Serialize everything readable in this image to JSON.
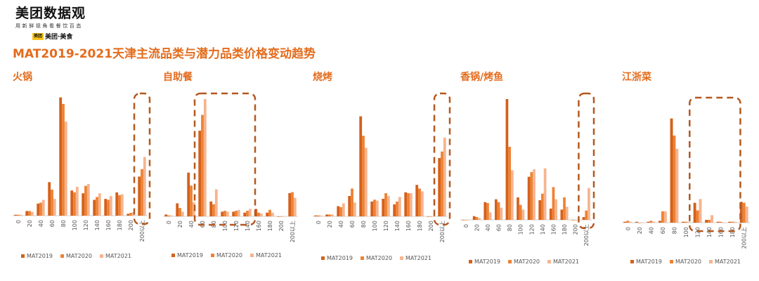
{
  "logo": {
    "title": "美团数据观",
    "subtitle": "用新鲜视角看餐饮百态",
    "brand": "美团·美食",
    "badge": "美团"
  },
  "page_title": "MAT2019-2021天津主流品类与潜力品类价格变动趋势",
  "colors": {
    "accent": "#e36c1d",
    "MAT2019": "#d4611c",
    "MAT2020": "#ee8233",
    "MAT2021": "#f6b48f",
    "highlight": "#b4581f"
  },
  "chart_data": [
    {
      "type": "bar",
      "title": "火锅",
      "categories": [
        "0",
        "20",
        "40",
        "60",
        "80",
        "100",
        "120",
        "140",
        "160",
        "180",
        "200",
        "200以上"
      ],
      "series": [
        {
          "name": "MAT2019",
          "values": [
            1,
            5,
            13,
            36,
            127,
            27,
            24,
            17,
            18,
            25,
            2,
            42
          ]
        },
        {
          "name": "MAT2020",
          "values": [
            1,
            5,
            14,
            28,
            120,
            25,
            32,
            20,
            17,
            22,
            3,
            50
          ]
        },
        {
          "name": "MAT2021",
          "values": [
            1,
            4,
            17,
            18,
            101,
            31,
            34,
            24,
            21,
            23,
            4,
            63
          ]
        }
      ],
      "ylim": [
        0,
        132
      ],
      "highlight_categories": [
        11
      ]
    },
    {
      "type": "bar",
      "title": "自助餐",
      "categories": [
        "0",
        "20",
        "40",
        "60",
        "80",
        "100",
        "120",
        "140",
        "160",
        "180",
        "200",
        "200以上"
      ],
      "series": [
        {
          "name": "MAT2019",
          "values": [
            2,
            14,
            47,
            92,
            16,
            5,
            5,
            4,
            8,
            4,
            0,
            25
          ]
        },
        {
          "name": "MAT2020",
          "values": [
            1,
            9,
            33,
            109,
            13,
            6,
            6,
            6,
            4,
            7,
            0,
            26
          ]
        },
        {
          "name": "MAT2021",
          "values": [
            1,
            5,
            15,
            126,
            29,
            5,
            7,
            8,
            3,
            4,
            0,
            20
          ]
        }
      ],
      "ylim": [
        0,
        132
      ],
      "highlight_categories": [
        3,
        4,
        5,
        6,
        7
      ]
    },
    {
      "type": "bar",
      "title": "烧烤",
      "categories": [
        "0",
        "20",
        "40",
        "60",
        "80",
        "100",
        "120",
        "140",
        "160",
        "180",
        "200",
        "200以上"
      ],
      "series": [
        {
          "name": "MAT2019",
          "values": [
            1,
            2,
            11,
            22,
            108,
            16,
            19,
            13,
            26,
            34,
            0,
            63
          ]
        },
        {
          "name": "MAT2020",
          "values": [
            1,
            2,
            10,
            30,
            87,
            18,
            25,
            16,
            25,
            30,
            0,
            70
          ]
        },
        {
          "name": "MAT2021",
          "values": [
            1,
            2,
            14,
            15,
            74,
            17,
            22,
            21,
            25,
            27,
            0,
            85
          ]
        }
      ],
      "ylim": [
        0,
        135
      ],
      "highlight_categories": [
        11
      ]
    },
    {
      "type": "bar",
      "title": "香锅/烤鱼",
      "categories": [
        "0",
        "20",
        "40",
        "60",
        "80",
        "100",
        "120",
        "140",
        "160",
        "180",
        "200",
        "200以上"
      ],
      "series": [
        {
          "name": "MAT2019",
          "values": [
            0,
            4,
            19,
            22,
            129,
            24,
            46,
            21,
            12,
            11,
            0,
            3
          ]
        },
        {
          "name": "MAT2020",
          "values": [
            0,
            3,
            18,
            19,
            78,
            16,
            51,
            28,
            35,
            24,
            0,
            10
          ]
        },
        {
          "name": "MAT2021",
          "values": [
            0,
            2,
            8,
            13,
            53,
            11,
            54,
            55,
            22,
            14,
            0,
            34
          ]
        }
      ],
      "ylim": [
        0,
        135
      ],
      "highlight_categories": [
        11
      ]
    },
    {
      "type": "bar",
      "title": "江浙菜",
      "categories": [
        "0",
        "20",
        "40",
        "60",
        "80",
        "100",
        "120",
        "140",
        "160",
        "180",
        "200以上"
      ],
      "series": [
        {
          "name": "MAT2019",
          "values": [
            1,
            1,
            1,
            2,
            110,
            1,
            21,
            3,
            1,
            1,
            22
          ]
        },
        {
          "name": "MAT2020",
          "values": [
            2,
            0,
            2,
            12,
            92,
            1,
            13,
            3,
            1,
            1,
            21
          ]
        },
        {
          "name": "MAT2021",
          "values": [
            1,
            0,
            1,
            12,
            78,
            1,
            25,
            8,
            0,
            1,
            17
          ]
        }
      ],
      "ylim": [
        0,
        132
      ],
      "highlight_categories": [
        6,
        7,
        8,
        9
      ]
    }
  ]
}
